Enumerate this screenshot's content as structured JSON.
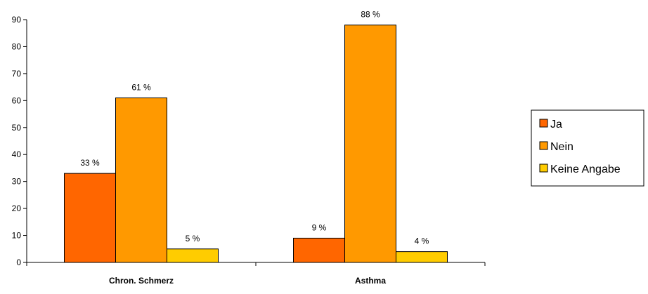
{
  "chart_data": {
    "type": "bar",
    "title": "",
    "xlabel": "",
    "ylabel": "",
    "categories": [
      "Chron. Schmerz",
      "Asthma"
    ],
    "series": [
      {
        "name": "Ja",
        "values": [
          33,
          9
        ],
        "labels": [
          "33 %",
          "9 %"
        ],
        "color": "#FF6600"
      },
      {
        "name": "Nein",
        "values": [
          61,
          88
        ],
        "labels": [
          "61 %",
          "88 %"
        ],
        "color": "#FF9900"
      },
      {
        "name": "Keine Angabe",
        "values": [
          5,
          4
        ],
        "labels": [
          "5 %",
          "4 %"
        ],
        "color": "#FFCC00"
      }
    ],
    "ylim": [
      0,
      90
    ],
    "yticks": [
      "0",
      "10",
      "20",
      "30",
      "40",
      "50",
      "60",
      "70",
      "80",
      "90"
    ],
    "grid": false,
    "legend_position": "right"
  }
}
